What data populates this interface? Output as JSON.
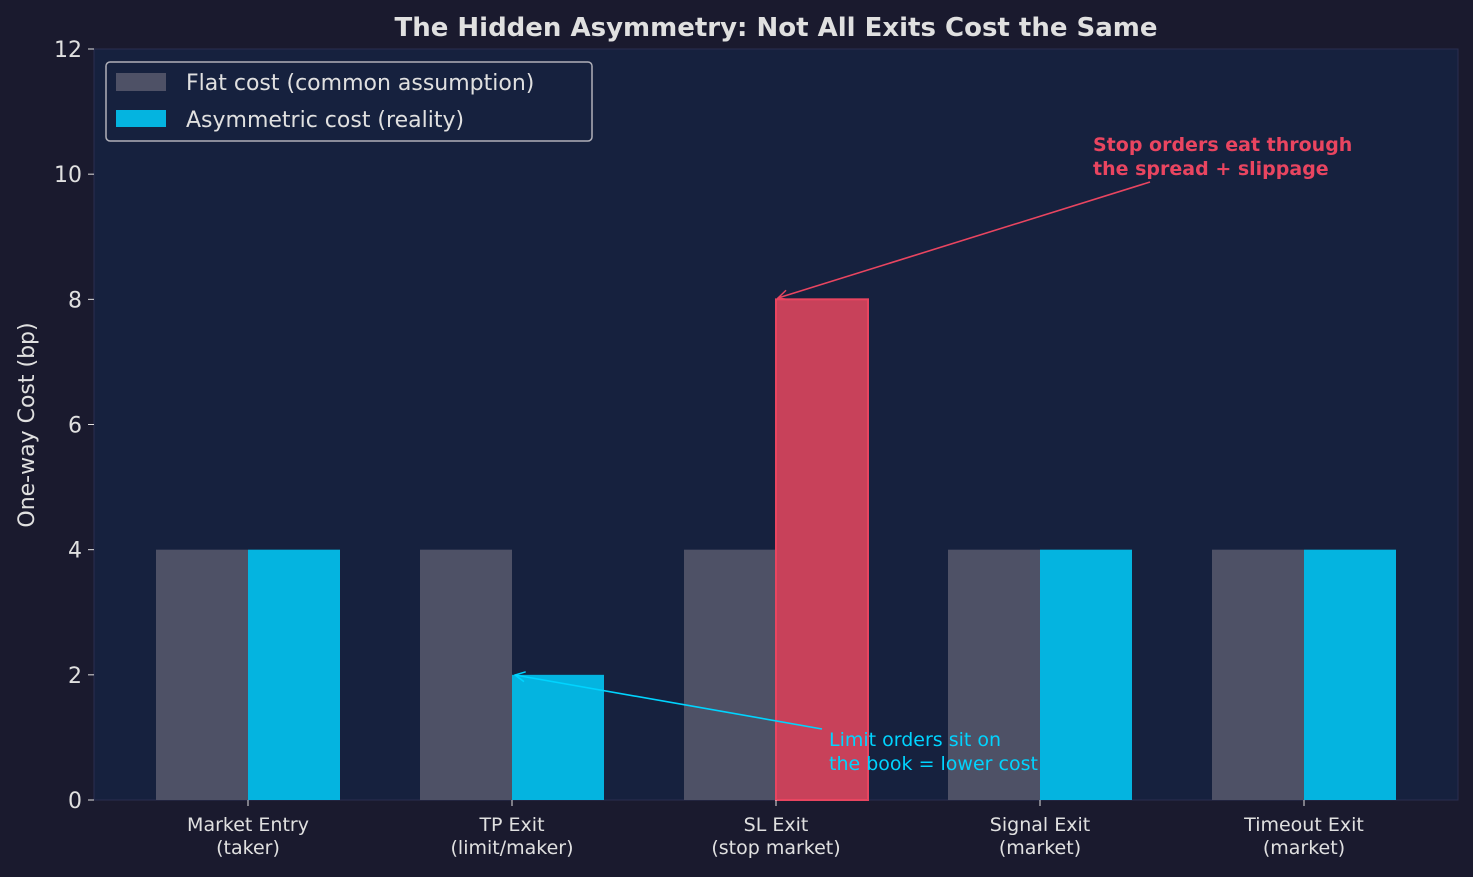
{
  "chart_data": {
    "type": "bar",
    "title": "The Hidden Asymmetry: Not All Exits Cost the Same",
    "xlabel": "",
    "ylabel": "One-way Cost (bp)",
    "ylim": [
      0,
      12
    ],
    "yticks": [
      "0",
      "2",
      "4",
      "6",
      "8",
      "10",
      "12"
    ],
    "categories": [
      [
        "Market Entry",
        "(taker)"
      ],
      [
        "TP Exit",
        "(limit/maker)"
      ],
      [
        "SL Exit",
        "(stop market)"
      ],
      [
        "Signal Exit",
        "(market)"
      ],
      [
        "Timeout Exit",
        "(market)"
      ]
    ],
    "series": [
      {
        "name": "Flat cost (common assumption)",
        "values": [
          4,
          4,
          4,
          4,
          4
        ],
        "color": "#4e5166"
      },
      {
        "name": "Asymmetric cost (reality)",
        "values": [
          4,
          2,
          8,
          4,
          4
        ],
        "color": "#04b4e0",
        "highlight_index": 2,
        "highlight_color": "#c8415a"
      }
    ],
    "legend": "top-left",
    "grid": false,
    "annotations": [
      {
        "text": [
          "Stop orders eat through",
          "the spread + slippage"
        ],
        "points_to": {
          "category": "SL Exit",
          "value": 8
        },
        "color": "#e94560"
      },
      {
        "text": [
          "Limit orders sit on",
          "the book = lower cost"
        ],
        "points_to": {
          "category": "TP Exit",
          "value": 2
        },
        "color": "#00d4ff"
      }
    ],
    "colors": {
      "background": "#1a1a2e",
      "plot_background": "#16213e",
      "text": "#e0e0e0"
    }
  }
}
